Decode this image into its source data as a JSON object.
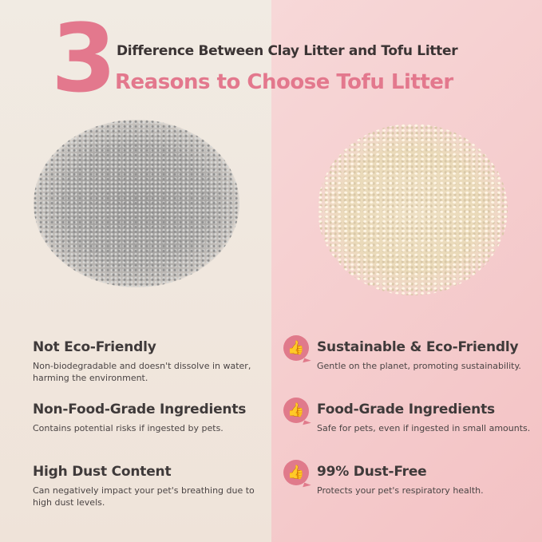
{
  "header": {
    "number": "3",
    "subtitle": "Difference Between Clay Litter and Tofu Litter",
    "title": "Reasons to Choose Tofu Litter"
  },
  "colors": {
    "accent": "#e3788d",
    "left_bg": "#f1ebe3",
    "right_bg": "#f5cccd",
    "text": "#3f3a3a"
  },
  "clay": {
    "items": [
      {
        "heading": "Not Eco-Friendly",
        "desc": "Non-biodegradable and doesn't dissolve in water, harming the environment."
      },
      {
        "heading": "Non-Food-Grade Ingredients",
        "desc": "Contains potential risks if ingested by pets."
      },
      {
        "heading": "High Dust Content",
        "desc": "Can negatively impact your pet's breathing due to high dust levels."
      }
    ]
  },
  "tofu": {
    "icon": "thumbs-up-icon",
    "items": [
      {
        "heading": "Sustainable & Eco-Friendly",
        "desc": "Gentle on the planet, promoting sustainability."
      },
      {
        "heading": "Food-Grade Ingredients",
        "desc": "Safe for pets, even if ingested in small amounts."
      },
      {
        "heading": "99% Dust-Free",
        "desc": "Protects your pet's respiratory health."
      }
    ]
  }
}
